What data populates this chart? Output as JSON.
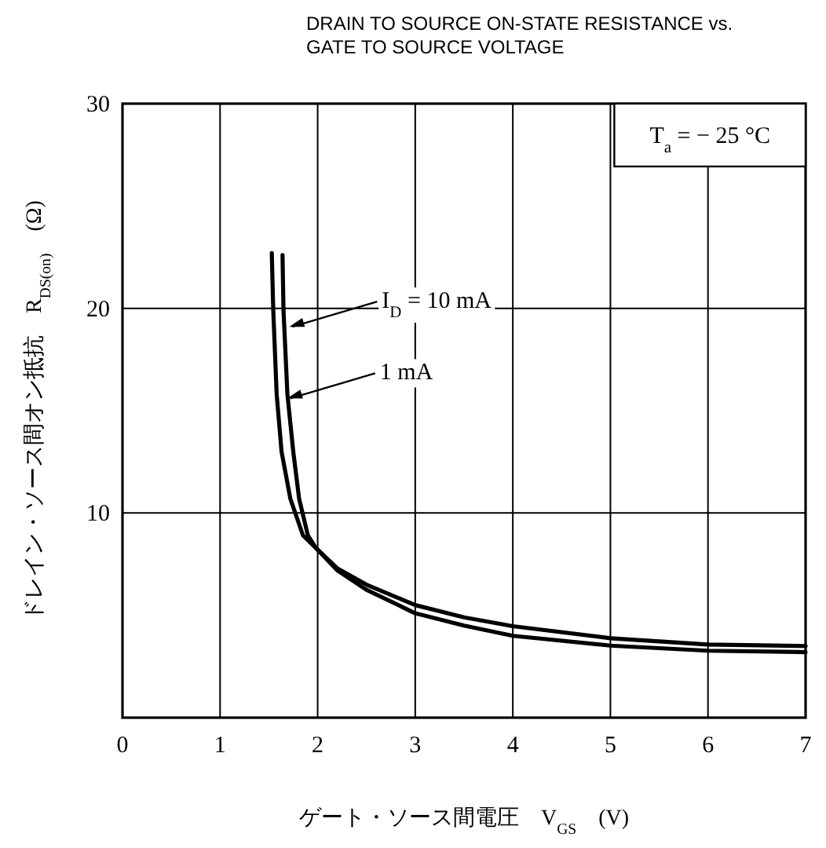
{
  "chart_data": {
    "type": "line",
    "title": "DRAIN TO SOURCE ON-STATE RESISTANCE vs. GATE TO SOURCE VOLTAGE",
    "xlabel": "ゲート・ソース間電圧　V$_{GS}$　(V)",
    "ylabel": "ドレイン・ソース間オン抵抗　R$_{DS(on)}$　(Ω)",
    "xlim": [
      0,
      7
    ],
    "ylim": [
      0,
      30
    ],
    "xticks": [
      0,
      1,
      2,
      3,
      4,
      5,
      6,
      7
    ],
    "yticks": [
      10,
      20,
      30
    ],
    "grid": true,
    "marker": "none",
    "line_style": "solid",
    "series": [
      {
        "color": "#000000",
        "x": [
          1.64,
          1.65,
          1.69,
          1.75,
          1.81,
          1.9,
          1.98,
          2.2,
          2.5,
          3,
          3.5,
          4,
          5,
          6,
          7
        ],
        "values": [
          22.6,
          19.9,
          15.8,
          13,
          10.7,
          8.9,
          8.3,
          7.3,
          6.5,
          5.5,
          4.9,
          4.47,
          3.88,
          3.57,
          3.5
        ]
      },
      {
        "color": "#000000",
        "x": [
          1.53,
          1.545,
          1.58,
          1.63,
          1.72,
          1.85,
          1.98,
          2.2,
          2.5,
          3,
          3.5,
          4,
          5,
          6,
          7
        ],
        "values": [
          22.7,
          19.9,
          15.8,
          13,
          10.7,
          8.9,
          8.3,
          7.2,
          6.25,
          5.1,
          4.5,
          4,
          3.52,
          3.27,
          3.2
        ]
      }
    ],
    "annotations": [
      {
        "text": "I$_{D}$ = 10 mA",
        "x": 1.66,
        "y": 19.1
      },
      {
        "text": "1 mA",
        "x": 1.64,
        "y": 15.6
      },
      "T$_{a}$ = − 25 °C"
    ]
  }
}
